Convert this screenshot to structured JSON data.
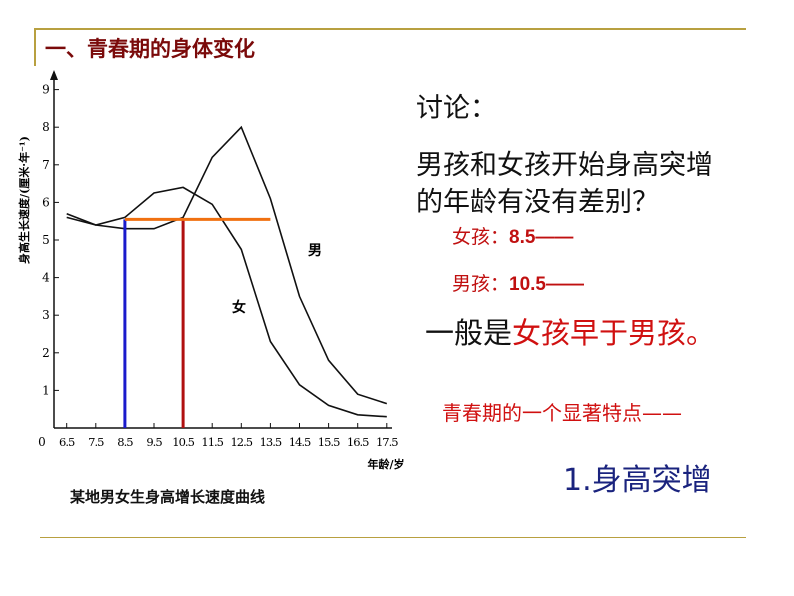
{
  "slide_title": "一、青春期的身体变化",
  "caption": "某地男女生身高增长速度曲线",
  "discussion": {
    "heading": "讨论：",
    "question_line1": "男孩和女孩开始身高突增",
    "question_line2": "的年龄有没有差别？",
    "girl_label": "女孩：",
    "girl_value": "8.5——",
    "boy_label": "男孩：",
    "boy_value": "10.5——",
    "conclusion_prefix": "一般是",
    "conclusion_highlight": "女孩早于男孩。",
    "feature_intro": "青春期的一个显著特点——",
    "feature_1": "1.身高突增"
  },
  "colors": {
    "title": "#7a0a0a",
    "accent_red": "#d01010",
    "rule": "#b8a040",
    "girl_marker": "#1a1acc",
    "boy_marker": "#b01010",
    "threshold": "#f07010",
    "feature": "#1a237e"
  },
  "chart_data": {
    "type": "line",
    "title": "某地男女生身高增长速度曲线",
    "xlabel": "年龄/岁",
    "ylabel": "身高生长速度/(厘米·年⁻¹)",
    "x": [
      6.5,
      7.5,
      8.5,
      9.5,
      10.5,
      11.5,
      12.5,
      13.5,
      14.5,
      15.5,
      16.5,
      17.5
    ],
    "x_tick_labels": [
      "6.5",
      "7.5",
      "8.5",
      "9.5",
      "10.5",
      "11.5",
      "12.5",
      "13.5",
      "14.5",
      "15.5",
      "16.5",
      "17.5"
    ],
    "y_tick_labels": [
      "1",
      "2",
      "3",
      "4",
      "5",
      "6",
      "7",
      "8",
      "9"
    ],
    "origin_label": "0",
    "ylim": [
      0,
      9
    ],
    "series": [
      {
        "name": "男",
        "values": [
          5.6,
          5.4,
          5.3,
          5.3,
          5.6,
          7.2,
          8.0,
          6.1,
          3.5,
          1.8,
          0.9,
          0.65
        ]
      },
      {
        "name": "女",
        "values": [
          5.7,
          5.4,
          5.6,
          6.25,
          6.4,
          5.95,
          4.75,
          2.3,
          1.15,
          0.6,
          0.35,
          0.3
        ]
      }
    ],
    "annotations": {
      "threshold_y": 5.55,
      "threshold_x_range": [
        8.5,
        13.5
      ],
      "girl_onset_x": 8.5,
      "boy_onset_x": 10.5
    }
  }
}
